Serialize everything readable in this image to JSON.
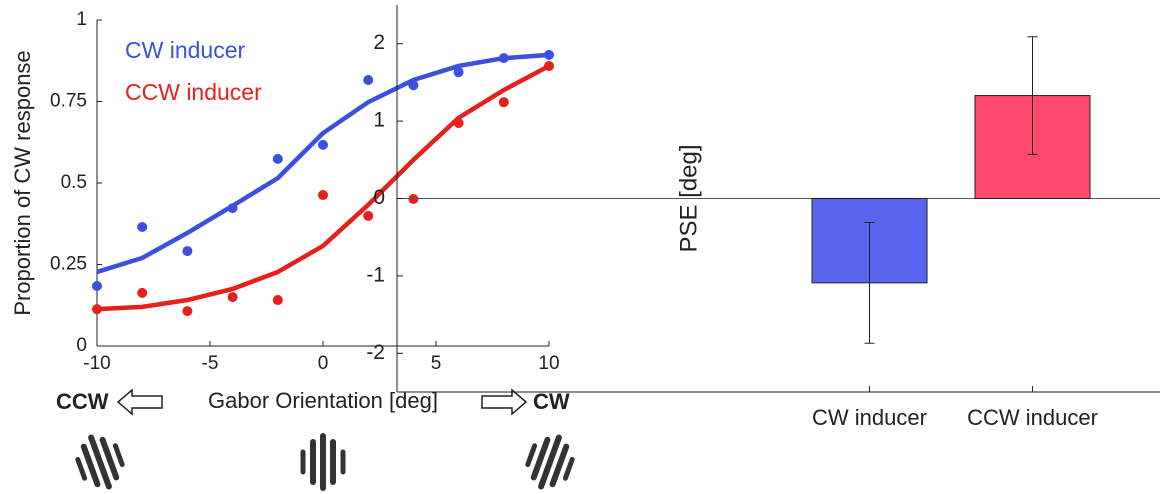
{
  "chart_data": [
    {
      "type": "line",
      "x_label": "Gabor Orientation [deg]",
      "y_label": "Proportion of CW response",
      "annotations": [
        "CCW",
        "CW"
      ],
      "x": [
        -10,
        -8,
        -6,
        -4,
        -2,
        0,
        2,
        4,
        6,
        8,
        10
      ],
      "series": [
        {
          "name": "CW inducer",
          "color": "#3b4fe0",
          "values": [
            0.184,
            0.365,
            0.291,
            0.423,
            0.574,
            0.617,
            0.816,
            0.8,
            0.84,
            0.883,
            0.893
          ],
          "fit": [
            0.227,
            0.27,
            0.347,
            0.43,
            0.515,
            0.653,
            0.748,
            0.816,
            0.859,
            0.883,
            0.893
          ]
        },
        {
          "name": "CCW inducer",
          "color": "#e8201c",
          "values": [
            0.113,
            0.163,
            0.107,
            0.15,
            0.141,
            0.463,
            0.399,
            0.451,
            0.684,
            0.748,
            0.859
          ],
          "fit": [
            0.113,
            0.12,
            0.141,
            0.175,
            0.227,
            0.307,
            0.433,
            0.571,
            0.7,
            0.785,
            0.859
          ]
        }
      ],
      "xlim": [
        -10,
        10
      ],
      "xticks": [
        -10,
        -5,
        0,
        5,
        10
      ],
      "ylim": [
        0,
        1
      ],
      "yticks": [
        0,
        0.25,
        0.5,
        0.75,
        1
      ]
    },
    {
      "type": "bar",
      "y_label": "PSE [deg]",
      "categories": [
        "CW inducer",
        "CCW inducer"
      ],
      "values": [
        -1.09,
        1.33
      ],
      "errors": [
        0.78,
        0.76
      ],
      "colors": [
        "#5a64ee",
        "#ff4a6e"
      ],
      "ylim": [
        -2.5,
        2.5
      ],
      "yticks": [
        -2,
        -1,
        0,
        1,
        2
      ]
    }
  ]
}
